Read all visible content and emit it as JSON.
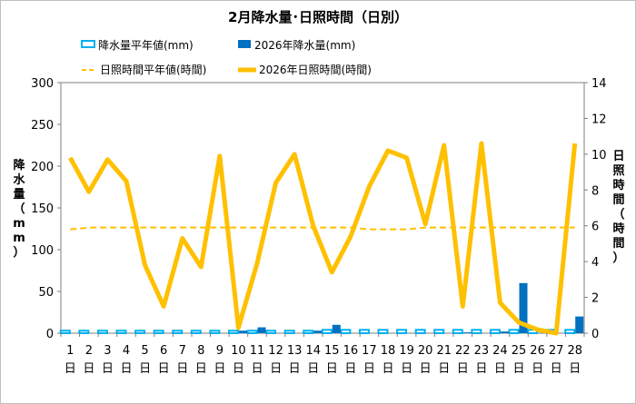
{
  "chart_data": {
    "type": "bar+line",
    "title": "2月降水量･日照時間（日別）",
    "categories": [
      "1",
      "2",
      "3",
      "4",
      "5",
      "6",
      "7",
      "8",
      "9",
      "10",
      "11",
      "12",
      "13",
      "14",
      "15",
      "16",
      "17",
      "18",
      "19",
      "20",
      "21",
      "22",
      "23",
      "24",
      "25",
      "26",
      "27",
      "28"
    ],
    "category_suffix": "日",
    "y_left": {
      "label": "降水量（mm）",
      "min": 0,
      "max": 300,
      "ticks": [
        0,
        50,
        100,
        150,
        200,
        250,
        300
      ]
    },
    "y_right": {
      "label": "日照時間（時間）",
      "min": 0,
      "max": 14,
      "ticks": [
        0,
        2,
        4,
        6,
        8,
        10,
        12,
        14
      ]
    },
    "grid": false,
    "legend_position": "top",
    "series": [
      {
        "name": "降水量平年値(mm)",
        "kind": "bar",
        "axis": "left",
        "style": "outline",
        "color": "#00b0f0",
        "values": [
          3,
          3,
          3,
          3,
          3,
          3,
          3,
          3,
          3,
          3,
          3,
          3,
          3,
          3,
          4,
          4,
          4,
          4,
          4,
          4,
          4,
          4,
          4,
          4,
          4,
          4,
          4,
          4
        ]
      },
      {
        "name": "2026年降水量(mm)",
        "kind": "bar",
        "axis": "left",
        "style": "filled",
        "color": "#0070c0",
        "values": [
          0,
          0,
          0,
          0,
          0,
          0,
          0,
          0,
          0,
          3,
          7,
          0,
          0,
          3,
          10,
          0,
          0,
          0,
          0,
          0,
          0,
          1,
          0,
          2,
          60,
          0,
          0,
          20
        ]
      },
      {
        "name": "日照時間平年値(時間)",
        "kind": "line",
        "axis": "right",
        "style": "dashed",
        "color": "#ffc000",
        "values": [
          5.8,
          5.9,
          5.9,
          5.9,
          5.9,
          5.9,
          5.9,
          5.9,
          5.9,
          5.9,
          5.9,
          5.9,
          5.9,
          5.9,
          5.9,
          5.9,
          5.8,
          5.8,
          5.8,
          5.9,
          5.9,
          5.9,
          5.9,
          5.9,
          5.9,
          5.9,
          5.9,
          5.9
        ]
      },
      {
        "name": "2026年日照時間(時間)",
        "kind": "line",
        "axis": "right",
        "style": "solid",
        "color": "#ffc000",
        "values": [
          9.8,
          7.9,
          9.7,
          8.5,
          3.8,
          1.5,
          5.3,
          3.7,
          9.9,
          0.3,
          3.9,
          8.4,
          10.0,
          6.0,
          3.4,
          5.4,
          8.2,
          10.2,
          9.8,
          6.1,
          10.5,
          1.5,
          10.6,
          1.7,
          0.6,
          0.2,
          0.0,
          10.6
        ]
      }
    ]
  }
}
